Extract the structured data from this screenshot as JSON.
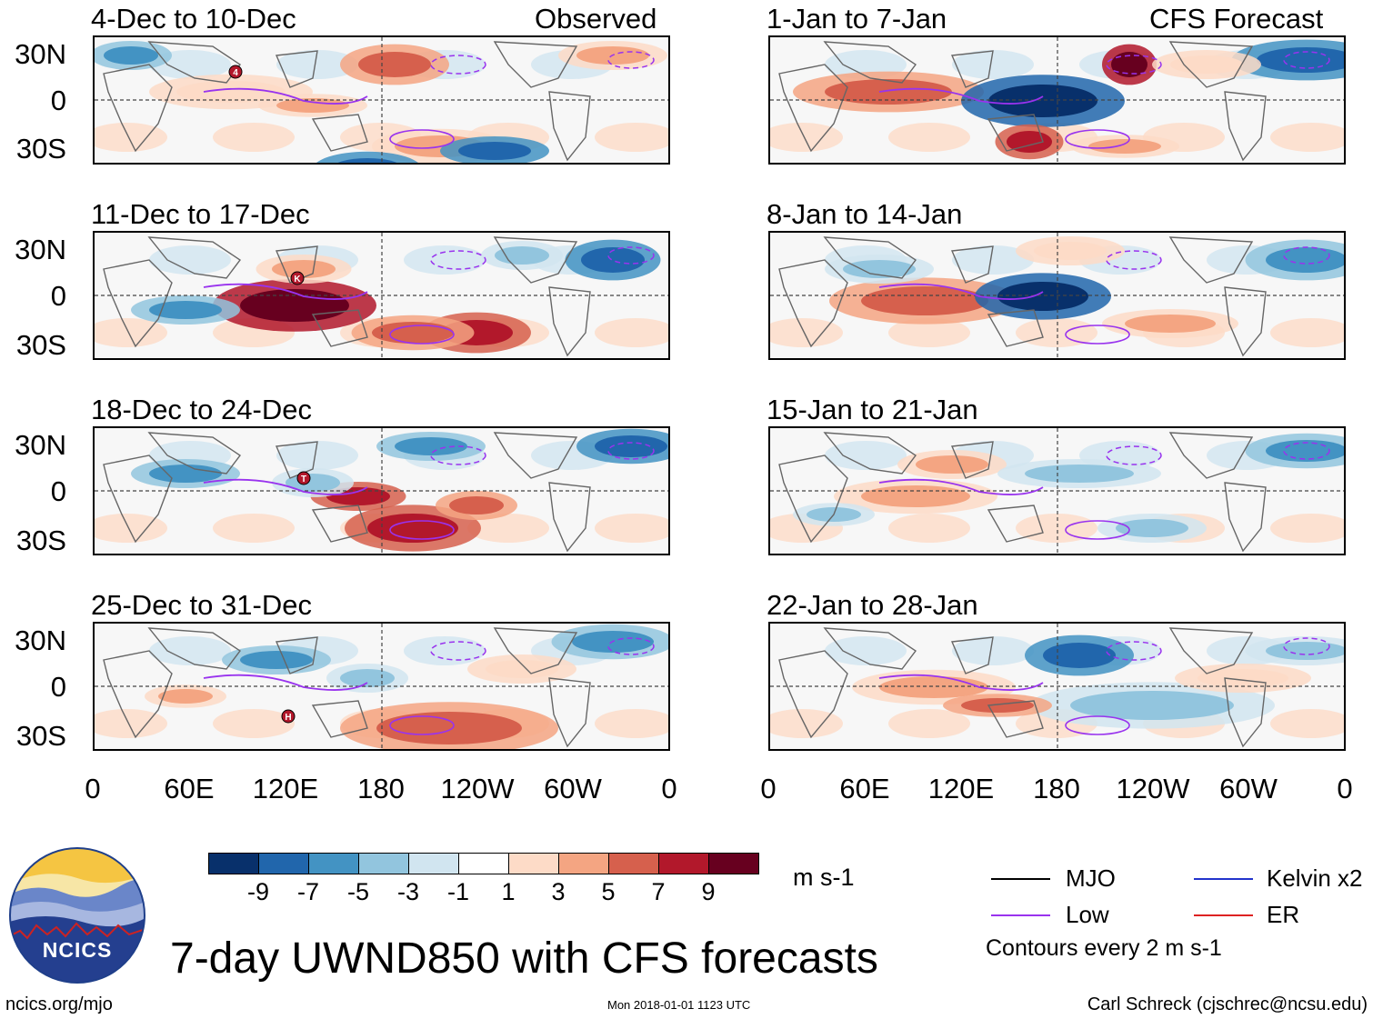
{
  "header": {
    "observed_label": "Observed",
    "forecast_label": "CFS Forecast"
  },
  "panels": {
    "observed": [
      {
        "title": "4-Dec to 10-Dec"
      },
      {
        "title": "11-Dec to 17-Dec"
      },
      {
        "title": "18-Dec to 24-Dec"
      },
      {
        "title": "25-Dec to 31-Dec"
      }
    ],
    "forecast": [
      {
        "title": "1-Jan to 7-Jan"
      },
      {
        "title": "8-Jan to 14-Jan"
      },
      {
        "title": "15-Jan to 21-Jan"
      },
      {
        "title": "22-Jan to 28-Jan"
      }
    ]
  },
  "axes": {
    "lat_labels": [
      "30N",
      "0",
      "30S"
    ],
    "lon_labels": [
      "0",
      "60E",
      "120E",
      "180",
      "120W",
      "60W",
      "0"
    ]
  },
  "colorbar": {
    "colors": [
      "#08306b",
      "#2166ac",
      "#4393c3",
      "#92c5de",
      "#d1e5f0",
      "#ffffff",
      "#fddbc7",
      "#f4a582",
      "#d6604d",
      "#b2182b",
      "#67001f"
    ],
    "labels": [
      "-9",
      "-7",
      "-5",
      "-3",
      "-1",
      "1",
      "3",
      "5",
      "7",
      "9"
    ],
    "units": "m s-1"
  },
  "legend": {
    "items": [
      {
        "label": "MJO",
        "color": "#000000"
      },
      {
        "label": "Kelvin x2",
        "color": "#2233cc"
      },
      {
        "label": "Low",
        "color": "#9933ee"
      },
      {
        "label": "ER",
        "color": "#dd2222"
      }
    ],
    "note": "Contours every 2 m s-1"
  },
  "footer": {
    "logo_text": "NCICS",
    "main_title": "7-day UWND850 with CFS forecasts",
    "url": "ncics.org/mjo",
    "timestamp": "Mon 2018-01-01 1123 UTC",
    "credit": "Carl Schreck (cjschrec@ncsu.edu)"
  },
  "storm_markers": [
    {
      "panel": "obs-0",
      "letter": "4"
    },
    {
      "panel": "obs-1",
      "letter": "K"
    },
    {
      "panel": "obs-2",
      "letter": "T"
    },
    {
      "panel": "obs-3",
      "letter": "H"
    }
  ]
}
